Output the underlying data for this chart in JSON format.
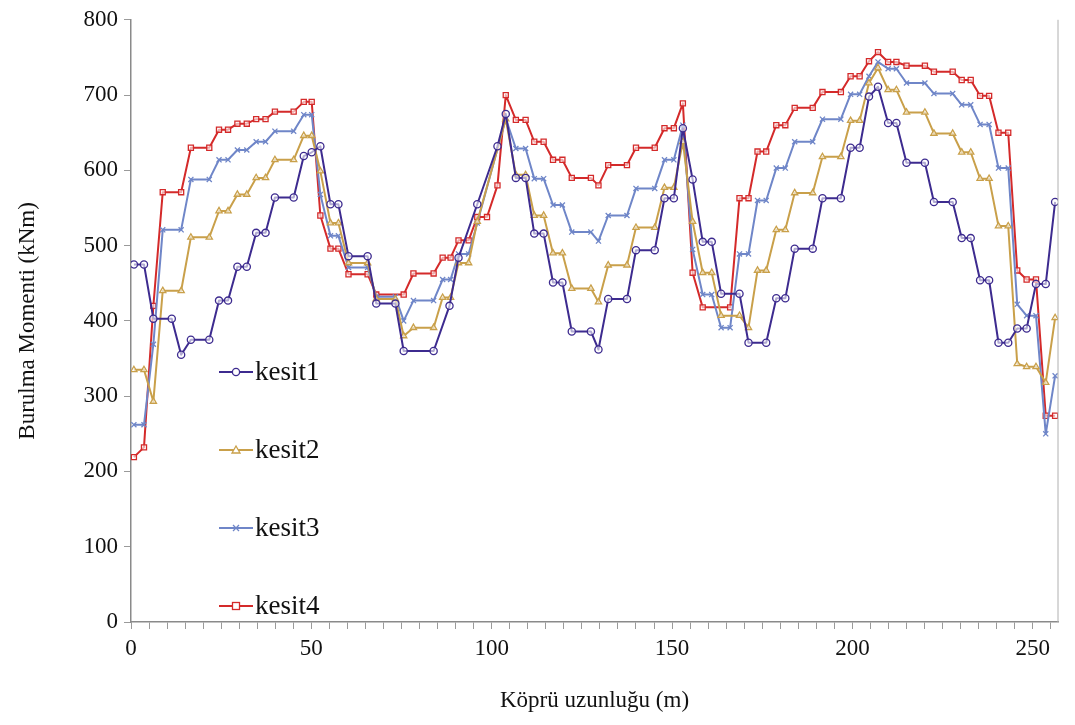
{
  "chart_data": {
    "type": "line",
    "xlabel": "Köprü uzunluğu (m)",
    "ylabel": "Burulma Momenti (kNm)",
    "xlim": [
      0,
      257
    ],
    "ylim": [
      0,
      800
    ],
    "xticks": [
      0,
      {
        "value": 5,
        "label": null
      },
      {
        "value": 10,
        "label": null
      },
      {
        "value": 15,
        "label": null
      },
      {
        "value": 20,
        "label": null
      },
      {
        "value": 25,
        "label": null
      },
      {
        "value": 30,
        "label": null
      },
      {
        "value": 35,
        "label": null
      },
      {
        "value": 40,
        "label": null
      },
      {
        "value": 45,
        "label": null
      },
      50,
      {
        "value": 55,
        "label": null
      },
      {
        "value": 60,
        "label": null
      },
      {
        "value": 65,
        "label": null
      },
      {
        "value": 70,
        "label": null
      },
      {
        "value": 75,
        "label": null
      },
      {
        "value": 80,
        "label": null
      },
      {
        "value": 85,
        "label": null
      },
      {
        "value": 90,
        "label": null
      },
      {
        "value": 95,
        "label": null
      },
      100,
      {
        "value": 105,
        "label": null
      },
      {
        "value": 110,
        "label": null
      },
      {
        "value": 115,
        "label": null
      },
      {
        "value": 120,
        "label": null
      },
      {
        "value": 125,
        "label": null
      },
      {
        "value": 130,
        "label": null
      },
      {
        "value": 135,
        "label": null
      },
      {
        "value": 140,
        "label": null
      },
      {
        "value": 145,
        "label": null
      },
      150,
      {
        "value": 155,
        "label": null
      },
      {
        "value": 160,
        "label": null
      },
      {
        "value": 165,
        "label": null
      },
      {
        "value": 170,
        "label": null
      },
      {
        "value": 175,
        "label": null
      },
      {
        "value": 180,
        "label": null
      },
      {
        "value": 185,
        "label": null
      },
      {
        "value": 190,
        "label": null
      },
      {
        "value": 195,
        "label": null
      },
      200,
      {
        "value": 205,
        "label": null
      },
      {
        "value": 210,
        "label": null
      },
      {
        "value": 215,
        "label": null
      },
      {
        "value": 220,
        "label": null
      },
      {
        "value": 225,
        "label": null
      },
      {
        "value": 230,
        "label": null
      },
      {
        "value": 235,
        "label": null
      },
      {
        "value": 240,
        "label": null
      },
      {
        "value": 245,
        "label": null
      },
      250,
      {
        "value": 255,
        "label": null
      }
    ],
    "yticks": [
      0,
      100,
      200,
      300,
      400,
      500,
      600,
      700,
      800
    ],
    "grid": false,
    "legend": "bottom left",
    "line_style": "solid",
    "series": [
      {
        "name": "kesit1",
        "color": "#3d2b8f",
        "marker": "circle",
        "x": [
          0.8,
          3.6,
          6.2,
          11.3,
          13.9,
          16.6,
          21.7,
          24.4,
          26.9,
          29.5,
          32.1,
          34.7,
          37.3,
          39.9,
          45.1,
          47.9,
          50.1,
          52.5,
          55.3,
          57.5,
          60.3,
          65.6,
          68,
          73.3,
          75.6,
          83.9,
          88.3,
          90.8,
          96,
          101.6,
          103.9,
          106.7,
          109.4,
          111.8,
          114.4,
          117,
          119.6,
          122.2,
          127.5,
          129.6,
          132.3,
          137.5,
          140,
          145.2,
          147.9,
          150.5,
          153,
          155.7,
          158.5,
          161,
          163.6,
          168.7,
          171.2,
          176.1,
          178.9,
          181.4,
          184,
          189,
          191.7,
          196.8,
          199.5,
          202,
          204.6,
          207.1,
          209.9,
          212.2,
          215,
          220.1,
          222.6,
          227.8,
          230.3,
          232.8,
          235.4,
          237.9,
          240.5,
          243.2,
          245.7,
          248.3,
          250.9,
          253.6,
          256.2
        ],
        "values": [
          475,
          475,
          403,
          403,
          355,
          375,
          375,
          427,
          427,
          472,
          472,
          517,
          517,
          564,
          564,
          619,
          624,
          632,
          555,
          555,
          486,
          486,
          423,
          423,
          360,
          360,
          420,
          484,
          555,
          632,
          675,
          590,
          590,
          516,
          516,
          451,
          451,
          386,
          386,
          362,
          429,
          429,
          494,
          494,
          563,
          563,
          656,
          588,
          505,
          505,
          436,
          436,
          371,
          371,
          430,
          430,
          496,
          496,
          563,
          563,
          630,
          630,
          698,
          711,
          663,
          663,
          610,
          610,
          558,
          558,
          510,
          510,
          454,
          454,
          371,
          371,
          390,
          390,
          449,
          449,
          558
        ]
      },
      {
        "name": "kesit2",
        "color": "#c9a04a",
        "marker": "triangle",
        "x": [
          0.8,
          3.6,
          6.2,
          8.8,
          13.9,
          16.6,
          21.7,
          24.4,
          26.9,
          29.5,
          32.1,
          34.7,
          37.3,
          39.9,
          45.1,
          47.9,
          50.1,
          52.5,
          55.3,
          57.5,
          60.3,
          65.6,
          68,
          73.3,
          75.6,
          78.3,
          83.9,
          86.4,
          88.6,
          90.8,
          93.6,
          96,
          103.9,
          106.7,
          109.4,
          111.8,
          114.4,
          117,
          119.6,
          122.2,
          127.5,
          129.6,
          132.3,
          137.5,
          140,
          145.2,
          147.9,
          150.5,
          153,
          155.7,
          158.5,
          161,
          163.6,
          168.7,
          171.2,
          173.7,
          176.1,
          178.9,
          181.4,
          184,
          189,
          191.7,
          196.8,
          199.5,
          202,
          204.6,
          207.1,
          209.9,
          212.2,
          215,
          220.1,
          222.6,
          227.8,
          230.3,
          232.8,
          235.4,
          237.9,
          240.5,
          243.2,
          245.7,
          248.3,
          250.9,
          253.6,
          256.2
        ],
        "values": [
          335,
          335,
          293,
          440,
          440,
          511,
          511,
          546,
          546,
          568,
          568,
          590,
          590,
          614,
          614,
          646,
          646,
          599,
          530,
          530,
          477,
          477,
          429,
          429,
          380,
          391,
          391,
          431,
          431,
          477,
          477,
          532,
          668,
          594,
          594,
          540,
          540,
          490,
          490,
          443,
          443,
          425,
          474,
          474,
          524,
          524,
          577,
          577,
          638,
          532,
          464,
          464,
          407,
          407,
          391,
          467,
          467,
          521,
          521,
          570,
          570,
          618,
          618,
          666,
          666,
          716,
          736,
          707,
          707,
          677,
          677,
          649,
          649,
          624,
          624,
          589,
          589,
          526,
          526,
          343,
          339,
          339,
          318,
          404
        ]
      },
      {
        "name": "kesit3",
        "color": "#6f86c8",
        "marker": "cross",
        "x": [
          0.8,
          3.6,
          6.2,
          8.8,
          13.9,
          16.6,
          21.7,
          24.4,
          26.9,
          29.5,
          32.1,
          34.7,
          37.3,
          39.9,
          45.1,
          47.9,
          50.1,
          52.5,
          55.3,
          57.5,
          60.3,
          65.6,
          68,
          73.3,
          75.6,
          78.3,
          83.9,
          86.4,
          88.6,
          90.8,
          93.6,
          96,
          103.9,
          106.7,
          109.4,
          111.8,
          114.4,
          117,
          119.6,
          122.2,
          127.5,
          129.6,
          132.3,
          137.5,
          140,
          145.2,
          147.9,
          150.5,
          153,
          155.7,
          158.5,
          161,
          163.6,
          166.1,
          168.7,
          171.2,
          173.7,
          176.1,
          178.9,
          181.4,
          184,
          189,
          191.7,
          196.8,
          199.5,
          202,
          204.6,
          207.1,
          209.9,
          212.2,
          215,
          220.1,
          222.6,
          227.8,
          230.3,
          232.8,
          235.4,
          237.9,
          240.5,
          243.2,
          245.7,
          248.3,
          250.9,
          253.6,
          256.2
        ],
        "values": [
          262,
          262,
          369,
          521,
          521,
          588,
          588,
          614,
          614,
          627,
          627,
          638,
          638,
          652,
          652,
          674,
          674,
          568,
          513,
          513,
          471,
          471,
          432,
          432,
          400,
          427,
          427,
          455,
          455,
          489,
          489,
          530,
          669,
          629,
          629,
          589,
          589,
          554,
          554,
          518,
          518,
          506,
          540,
          540,
          576,
          576,
          614,
          614,
          660,
          495,
          435,
          435,
          391,
          391,
          489,
          489,
          560,
          560,
          603,
          603,
          638,
          638,
          668,
          668,
          701,
          701,
          725,
          744,
          735,
          735,
          716,
          716,
          702,
          702,
          687,
          687,
          661,
          661,
          603,
          603,
          422,
          407,
          407,
          250,
          327
        ]
      },
      {
        "name": "kesit4",
        "color": "#d42a2a",
        "marker": "square",
        "x": [
          0.8,
          3.6,
          6.2,
          8.8,
          13.9,
          16.6,
          21.7,
          24.4,
          26.9,
          29.5,
          32.1,
          34.7,
          37.3,
          39.9,
          45.1,
          47.9,
          50.1,
          52.5,
          55.3,
          57.5,
          60.3,
          65.6,
          68,
          75.6,
          78.3,
          83.9,
          86.4,
          88.6,
          90.8,
          93.6,
          96,
          98.7,
          101.6,
          103.9,
          106.7,
          109.4,
          111.8,
          114.4,
          117,
          119.6,
          122.2,
          127.5,
          129.6,
          132.3,
          137.5,
          140,
          145.2,
          147.9,
          150.5,
          153,
          155.7,
          158.5,
          166.1,
          168.7,
          171.2,
          173.7,
          176.1,
          178.9,
          181.4,
          184,
          189,
          191.7,
          196.8,
          199.5,
          202,
          204.6,
          207.1,
          209.9,
          212.2,
          215,
          220.1,
          222.6,
          227.8,
          230.3,
          232.8,
          235.4,
          237.9,
          240.5,
          243.2,
          245.7,
          248.3,
          250.9,
          253.6,
          256.2
        ],
        "values": [
          219,
          232,
          420,
          571,
          571,
          630,
          630,
          654,
          654,
          662,
          662,
          668,
          668,
          678,
          678,
          691,
          691,
          540,
          496,
          496,
          462,
          462,
          435,
          435,
          463,
          463,
          484,
          484,
          507,
          507,
          538,
          538,
          580,
          700,
          667,
          667,
          638,
          638,
          614,
          614,
          590,
          590,
          580,
          607,
          607,
          630,
          630,
          656,
          656,
          689,
          464,
          418,
          418,
          563,
          563,
          625,
          625,
          660,
          660,
          683,
          683,
          704,
          704,
          725,
          725,
          745,
          757,
          744,
          744,
          739,
          739,
          731,
          731,
          720,
          720,
          699,
          699,
          650,
          650,
          467,
          455,
          455,
          274,
          274
        ]
      }
    ]
  }
}
